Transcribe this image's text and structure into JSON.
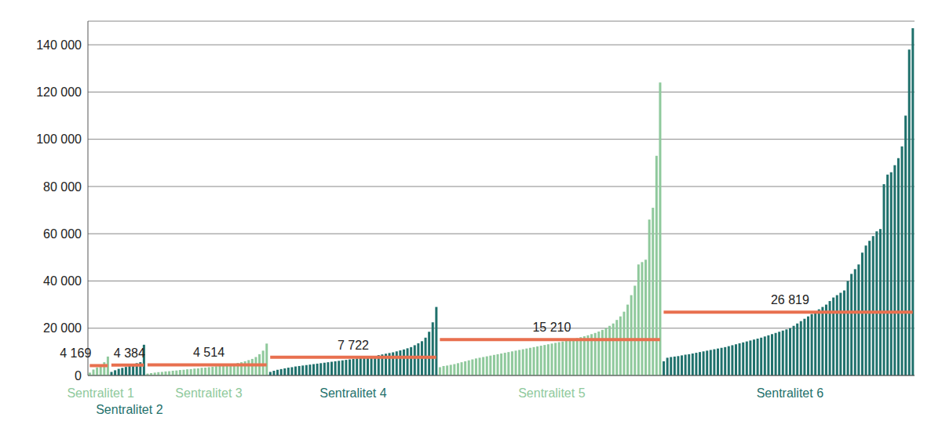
{
  "chart_data": {
    "type": "bar",
    "ylim": [
      0,
      150000
    ],
    "yticks": [
      0,
      {
        "value": 20000,
        "label": "20 000"
      },
      {
        "value": 40000,
        "label": "40 000"
      },
      {
        "value": 60000,
        "label": "60 000"
      },
      {
        "value": 80000,
        "label": "80 000"
      },
      {
        "value": 100000,
        "label": "100 000"
      },
      {
        "value": 120000,
        "label": "120 000"
      },
      {
        "value": 140000,
        "label": "140 000"
      }
    ],
    "grid": true,
    "series": [
      {
        "name": "Sentralitet 1",
        "color": "#8fc99c",
        "mean": 4169,
        "mean_label": "4 169",
        "values": [
          1200,
          2500,
          3400,
          4300,
          5600,
          8000
        ]
      },
      {
        "name": "Sentralitet 2",
        "color": "#1f716c",
        "mean": 4384,
        "mean_label": "4 384",
        "values": [
          1500,
          2200,
          2800,
          3200,
          3600,
          4000,
          4500,
          5200,
          5600,
          13000
        ]
      },
      {
        "name": "Sentralitet 3",
        "color": "#8fc99c",
        "mean": 4514,
        "mean_label": "4 514",
        "values": [
          800,
          1000,
          1200,
          1400,
          1500,
          1700,
          1800,
          2000,
          2100,
          2300,
          2400,
          2600,
          2700,
          2900,
          3000,
          3200,
          3300,
          3500,
          3700,
          3900,
          4100,
          4300,
          4500,
          4800,
          5000,
          5300,
          5600,
          6000,
          6500,
          7000,
          7800,
          9000,
          10500,
          13500
        ]
      },
      {
        "name": "Sentralitet 4",
        "color": "#1f716c",
        "mean": 7722,
        "mean_label": "7 722",
        "values": [
          1500,
          2000,
          2400,
          2700,
          3000,
          3300,
          3500,
          3800,
          4000,
          4200,
          4400,
          4600,
          4800,
          5000,
          5200,
          5400,
          5600,
          5800,
          6000,
          6200,
          6400,
          6600,
          6800,
          7000,
          7200,
          7400,
          7600,
          7800,
          8000,
          8300,
          8600,
          8900,
          9200,
          9500,
          9800,
          10200,
          10600,
          11000,
          11500,
          12000,
          12800,
          13600,
          14500,
          16000,
          18500,
          22500,
          29000
        ]
      },
      {
        "name": "Sentralitet 5",
        "color": "#8fc99c",
        "mean": 15210,
        "mean_label": "15 210",
        "values": [
          3500,
          4000,
          4200,
          4500,
          4800,
          5200,
          5600,
          6000,
          6400,
          6800,
          7200,
          7500,
          7800,
          8100,
          8400,
          8700,
          9000,
          9300,
          9600,
          9900,
          10200,
          10500,
          10800,
          11100,
          11400,
          11700,
          12000,
          12300,
          12600,
          12900,
          13200,
          13500,
          13800,
          14100,
          14400,
          14700,
          15000,
          15400,
          15800,
          16200,
          16600,
          17000,
          17500,
          18000,
          18600,
          19300,
          20000,
          21000,
          22000,
          23500,
          25000,
          27000,
          30000,
          34000,
          38000,
          47000,
          48000,
          49000,
          66000,
          71000,
          93000,
          124000
        ]
      },
      {
        "name": "Sentralitet 6",
        "color": "#1f716c",
        "mean": 26819,
        "mean_label": "26 819",
        "values": [
          6000,
          7500,
          7800,
          8000,
          8200,
          8500,
          8800,
          9000,
          9300,
          9600,
          9900,
          10200,
          10500,
          10800,
          11100,
          11400,
          11700,
          12000,
          12400,
          12800,
          13200,
          13600,
          14000,
          14400,
          14800,
          15200,
          15600,
          16000,
          16500,
          17000,
          17500,
          18000,
          18500,
          19000,
          19500,
          20000,
          21000,
          22000,
          23000,
          24000,
          25000,
          26000,
          27000,
          28000,
          29000,
          30000,
          31500,
          33000,
          34000,
          35000,
          36000,
          40000,
          43000,
          45000,
          47000,
          52000,
          55000,
          57000,
          59000,
          61000,
          62000,
          81000,
          85000,
          86000,
          89000,
          92000,
          97000,
          110000,
          138000,
          147000
        ]
      }
    ]
  }
}
